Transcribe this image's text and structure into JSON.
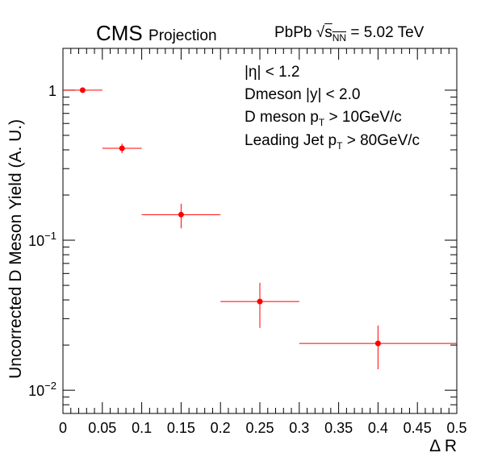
{
  "header": {
    "experiment": "CMS",
    "label": "Projection",
    "system_prefix": "PbPb",
    "sqrt_symbol": "√",
    "energy_var": "s",
    "energy_sub": "NN",
    "energy_value": " = 5.02 TeV"
  },
  "annotations": {
    "eta_cut": "|η| < 1.2",
    "rapidity_cut": "Dmeson |y| < 2.0",
    "dmeson_pt": {
      "prefix": "D meson p",
      "sub": "T",
      "suffix": " > 10GeV/c"
    },
    "jet_pt": {
      "prefix": "Leading Jet p",
      "sub": "T",
      "suffix": " > 80GeV/c"
    }
  },
  "chart_data": {
    "type": "scatter",
    "xlabel": "Δ R",
    "ylabel": "Uncorrected D Meson Yield (A. U.)",
    "xlim": [
      0,
      0.5
    ],
    "ylim": [
      0.007,
      1.9
    ],
    "yscale": "log",
    "x_ticks": [
      "0",
      "0.05",
      "0.1",
      "0.15",
      "0.2",
      "0.25",
      "0.3",
      "0.35",
      "0.4",
      "0.45",
      "0.5"
    ],
    "y_ticks": [
      {
        "value": 1,
        "label": "1"
      },
      {
        "value": 0.1,
        "label": "10",
        "exponent": "−1"
      },
      {
        "value": 0.01,
        "label": "10",
        "exponent": "−2"
      }
    ],
    "grid": false,
    "marker_color": "#ff0000",
    "points": [
      {
        "x": 0.025,
        "xlow": 0.0,
        "xhigh": 0.05,
        "y": 1.0,
        "ylow": 1.0,
        "yhigh": 1.0
      },
      {
        "x": 0.075,
        "xlow": 0.05,
        "xhigh": 0.1,
        "y": 0.41,
        "ylow": 0.38,
        "yhigh": 0.44
      },
      {
        "x": 0.15,
        "xlow": 0.1,
        "xhigh": 0.2,
        "y": 0.148,
        "ylow": 0.12,
        "yhigh": 0.175
      },
      {
        "x": 0.25,
        "xlow": 0.2,
        "xhigh": 0.3,
        "y": 0.039,
        "ylow": 0.026,
        "yhigh": 0.052
      },
      {
        "x": 0.4,
        "xlow": 0.3,
        "xhigh": 0.5,
        "y": 0.0205,
        "ylow": 0.0138,
        "yhigh": 0.027
      }
    ]
  }
}
